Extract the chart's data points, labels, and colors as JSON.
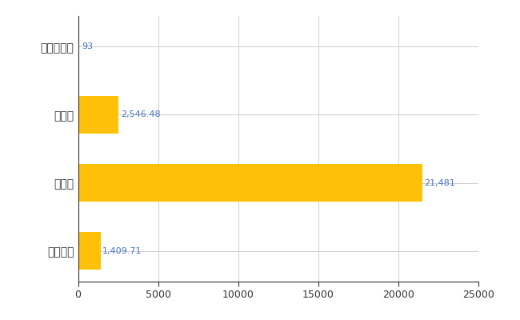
{
  "categories": [
    "大崎上島町",
    "県平均",
    "県最大",
    "全国平均"
  ],
  "values": [
    93,
    2546.48,
    21481,
    1409.71
  ],
  "labels": [
    "93",
    "2,546.48",
    "21,481",
    "1,409.71"
  ],
  "bar_color": "#FFC107",
  "background_color": "#ffffff",
  "grid_color": "#cccccc",
  "label_color": "#4472c4",
  "xlim": [
    0,
    25000
  ],
  "xticks": [
    0,
    5000,
    10000,
    15000,
    20000,
    25000
  ],
  "xtick_labels": [
    "0",
    "5000",
    "10000",
    "15000",
    "20000",
    "25000"
  ],
  "bar_height": 0.55,
  "figsize": [
    6.5,
    4.0
  ],
  "dpi": 100
}
